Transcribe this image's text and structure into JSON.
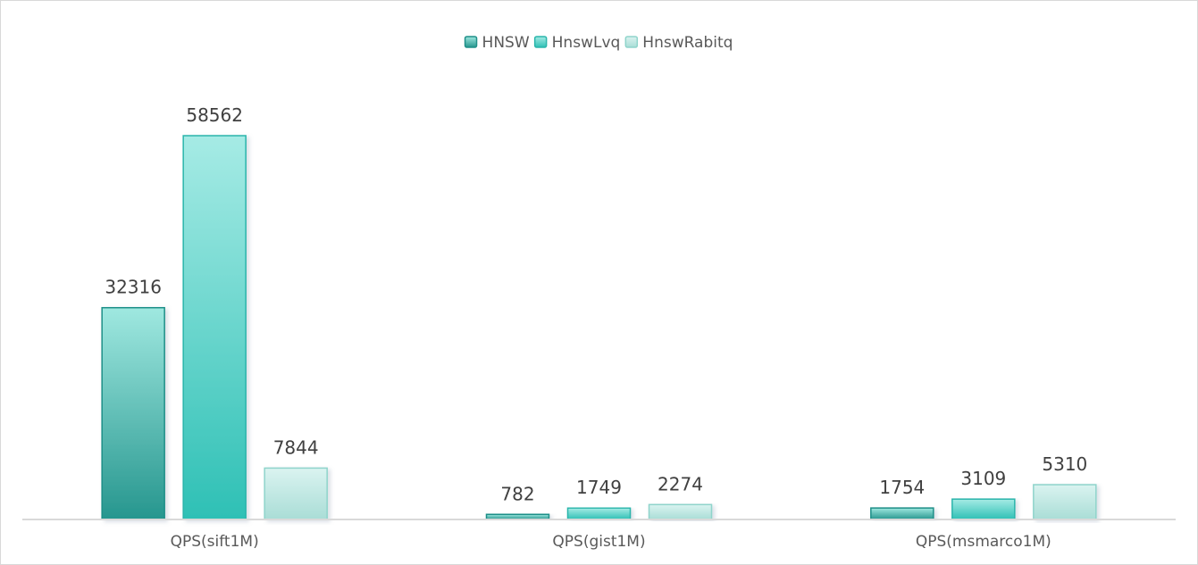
{
  "chart_data": {
    "type": "bar",
    "categories": [
      "QPS(sift1M)",
      "QPS(gist1M)",
      "QPS(msmarco1M)"
    ],
    "series": [
      {
        "name": "HNSW",
        "values": [
          32316,
          782,
          1754
        ]
      },
      {
        "name": "HnswLvq",
        "values": [
          58562,
          1749,
          3109
        ]
      },
      {
        "name": "HnswRabitq",
        "values": [
          7844,
          2274,
          5310
        ]
      }
    ],
    "ylim": [
      0,
      58562
    ],
    "grid": false,
    "legend_position": "top-center",
    "data_labels": true,
    "colors": {
      "HNSW": {
        "top": "#9fe8e0",
        "bottom": "#26968e",
        "stroke": "#1f8f88"
      },
      "HnswLvq": {
        "top": "#a6ebe5",
        "bottom": "#2ec0b5",
        "stroke": "#2ab5ab"
      },
      "HnswRabitq": {
        "top": "#daf3f0",
        "bottom": "#a9ddd6",
        "stroke": "#8fd4cb"
      },
      "axis": "#d9d9d9"
    }
  }
}
